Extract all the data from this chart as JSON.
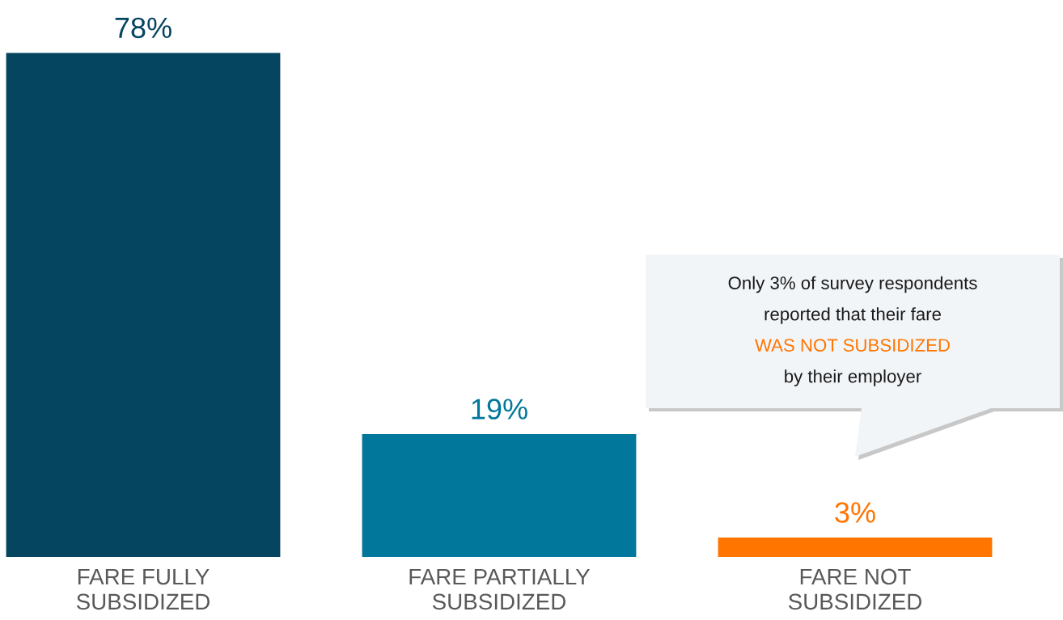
{
  "chart_data": {
    "type": "bar",
    "categories": [
      "FARE FULLY\nSUBSIDIZED",
      "FARE PARTIALLY\nSUBSIDIZED",
      "FARE NOT\nSUBSIDIZED"
    ],
    "values": [
      78,
      19,
      3
    ],
    "colors": [
      "#054560",
      "#00779b",
      "#ff7500"
    ],
    "value_labels": [
      "78%",
      "19%",
      "3%"
    ],
    "annotations": [
      "Only 3% of survey respondents\nreported that their fare\nWAS NOT SUBSIDIZED\nby their employer"
    ],
    "grid": false,
    "legend": false
  }
}
